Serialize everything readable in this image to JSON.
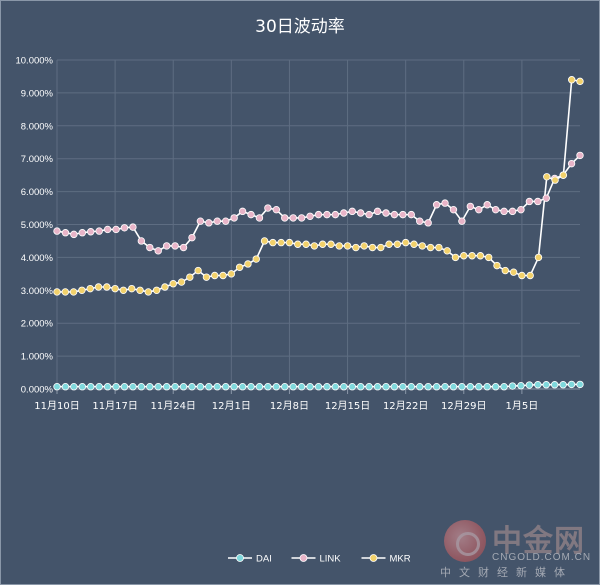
{
  "chart_data": {
    "type": "line",
    "title": "30日波动率",
    "xlabel": "",
    "ylabel": "",
    "ylim": [
      0,
      10
    ],
    "y_ticks": [
      "0.000%",
      "1.000%",
      "2.000%",
      "3.000%",
      "4.000%",
      "5.000%",
      "6.000%",
      "7.000%",
      "8.000%",
      "9.000%",
      "10.000%"
    ],
    "x_tick_labels": [
      "11月10日",
      "11月17日",
      "11月24日",
      "12月1日",
      "12月8日",
      "12月15日",
      "12月22日",
      "12月29日",
      "1月5日"
    ],
    "x_tick_index": [
      0,
      7,
      14,
      21,
      28,
      35,
      42,
      49,
      56
    ],
    "grid": true,
    "legend_position": "bottom",
    "series": [
      {
        "name": "DAI",
        "color": "#7fd8dc",
        "values": [
          0.07,
          0.07,
          0.07,
          0.07,
          0.07,
          0.07,
          0.07,
          0.07,
          0.07,
          0.07,
          0.07,
          0.07,
          0.07,
          0.07,
          0.07,
          0.07,
          0.07,
          0.07,
          0.07,
          0.07,
          0.07,
          0.07,
          0.07,
          0.07,
          0.07,
          0.07,
          0.07,
          0.07,
          0.07,
          0.07,
          0.07,
          0.07,
          0.07,
          0.07,
          0.07,
          0.07,
          0.07,
          0.07,
          0.07,
          0.07,
          0.07,
          0.07,
          0.07,
          0.07,
          0.07,
          0.07,
          0.07,
          0.07,
          0.07,
          0.07,
          0.07,
          0.07,
          0.07,
          0.07,
          0.09,
          0.1,
          0.12,
          0.13,
          0.13,
          0.13,
          0.13,
          0.14,
          0.14
        ]
      },
      {
        "name": "LINK",
        "color": "#e8b4c8",
        "values": [
          4.8,
          4.75,
          4.7,
          4.75,
          4.78,
          4.8,
          4.85,
          4.85,
          4.9,
          4.92,
          4.5,
          4.3,
          4.2,
          4.35,
          4.35,
          4.3,
          4.6,
          5.1,
          5.05,
          5.1,
          5.1,
          5.2,
          5.4,
          5.3,
          5.2,
          5.5,
          5.45,
          5.2,
          5.2,
          5.2,
          5.25,
          5.3,
          5.3,
          5.3,
          5.35,
          5.4,
          5.35,
          5.3,
          5.4,
          5.35,
          5.3,
          5.3,
          5.3,
          5.1,
          5.05,
          5.6,
          5.65,
          5.45,
          5.1,
          5.55,
          5.45,
          5.6,
          5.45,
          5.4,
          5.4,
          5.45,
          5.7,
          5.7,
          5.8,
          6.4,
          6.5,
          6.85,
          7.1
        ]
      },
      {
        "name": "MKR",
        "color": "#f2d16b",
        "values": [
          2.95,
          2.95,
          2.95,
          3.0,
          3.05,
          3.1,
          3.1,
          3.05,
          3.0,
          3.05,
          3.0,
          2.95,
          3.0,
          3.1,
          3.2,
          3.25,
          3.4,
          3.6,
          3.4,
          3.45,
          3.45,
          3.5,
          3.7,
          3.8,
          3.95,
          4.5,
          4.45,
          4.45,
          4.45,
          4.4,
          4.4,
          4.35,
          4.4,
          4.4,
          4.35,
          4.35,
          4.3,
          4.35,
          4.3,
          4.3,
          4.4,
          4.4,
          4.45,
          4.4,
          4.35,
          4.3,
          4.3,
          4.2,
          4.0,
          4.05,
          4.05,
          4.05,
          4.0,
          3.75,
          3.6,
          3.55,
          3.45,
          3.45,
          4.0,
          6.45,
          6.35,
          6.5,
          9.4,
          9.35
        ]
      }
    ]
  },
  "watermark": {
    "name": "中金网",
    "url": "CNGOLD.COM.CN",
    "tagline": "中文财经新媒体"
  }
}
